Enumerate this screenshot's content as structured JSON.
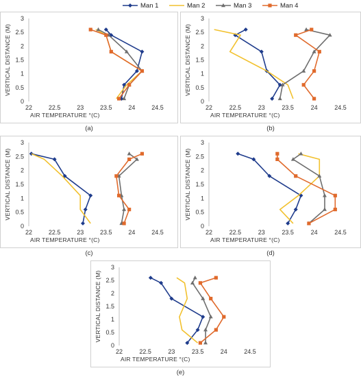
{
  "colors": {
    "Man 1": "#1f3c8c",
    "Man 2": "#f2c12e",
    "Man 3": "#6e6e6e",
    "Man 4": "#e06a2c"
  },
  "legend": [
    {
      "name": "Man 1",
      "marker": "diamond"
    },
    {
      "name": "Man 2",
      "marker": "none"
    },
    {
      "name": "Man 3",
      "marker": "triangle"
    },
    {
      "name": "Man 4",
      "marker": "square"
    }
  ],
  "chart_data": [
    {
      "type": "line",
      "panel_label": "(a)",
      "xlabel": "AIR TEMPERATURE °(C)",
      "ylabel": "VERTICAL DISTANCE (M)",
      "xlim": [
        22,
        24.5
      ],
      "ylim": [
        0,
        3
      ],
      "xticks": [
        "22",
        "22.5",
        "23",
        "23.5",
        "24",
        "24.5"
      ],
      "yticks": [
        "0",
        "0.5",
        "1",
        "1.5",
        "2",
        "2.5",
        "3"
      ],
      "series": [
        {
          "name": "Man 1",
          "x": [
            23.8,
            23.85,
            24.1,
            24.2,
            23.6,
            23.5
          ],
          "y": [
            0.1,
            0.6,
            1.1,
            1.8,
            2.4,
            2.6
          ]
        },
        {
          "name": "Man 2",
          "x": [
            23.7,
            23.9,
            24.2,
            23.6,
            23.5,
            23.3
          ],
          "y": [
            0.1,
            0.6,
            1.1,
            1.8,
            2.4,
            2.6
          ]
        },
        {
          "name": "Man 3",
          "x": [
            23.85,
            23.95,
            24.2,
            23.9,
            23.55,
            23.35
          ],
          "y": [
            0.1,
            0.6,
            1.1,
            1.8,
            2.4,
            2.6
          ]
        },
        {
          "name": "Man 4",
          "x": [
            23.75,
            23.95,
            24.2,
            23.6,
            23.5,
            23.2
          ],
          "y": [
            0.1,
            0.6,
            1.1,
            1.8,
            2.4,
            2.6
          ]
        }
      ]
    },
    {
      "type": "line",
      "panel_label": "(b)",
      "xlabel": "AIR TEMPERATURE °(C)",
      "ylabel": "VERTICAL DISTANCE (M)",
      "xlim": [
        22,
        24.5
      ],
      "ylim": [
        0,
        3
      ],
      "xticks": [
        "22",
        "22.5",
        "23",
        "23.5",
        "24",
        "24.5"
      ],
      "yticks": [
        "0",
        "0.5",
        "1",
        "1.5",
        "2",
        "2.5",
        "3"
      ],
      "series": [
        {
          "name": "Man 1",
          "x": [
            23.2,
            23.35,
            23.1,
            23.0,
            22.5,
            22.7
          ],
          "y": [
            0.1,
            0.6,
            1.1,
            1.8,
            2.4,
            2.6
          ]
        },
        {
          "name": "Man 2",
          "x": [
            23.6,
            23.5,
            23.1,
            22.4,
            22.6,
            22.1
          ],
          "y": [
            0.1,
            0.6,
            1.1,
            1.8,
            2.4,
            2.6
          ]
        },
        {
          "name": "Man 3",
          "x": [
            23.35,
            23.4,
            23.8,
            24.0,
            24.3,
            23.85
          ],
          "y": [
            0.1,
            0.6,
            1.1,
            1.8,
            2.4,
            2.6
          ]
        },
        {
          "name": "Man 4",
          "x": [
            24.0,
            23.8,
            24.0,
            24.1,
            23.65,
            23.95
          ],
          "y": [
            0.1,
            0.6,
            1.1,
            1.8,
            2.4,
            2.6
          ]
        }
      ]
    },
    {
      "type": "line",
      "panel_label": "(c)",
      "xlabel": "AIR TEMPERATURE °(C)",
      "ylabel": "VERTICAL DISTANCE (M)",
      "xlim": [
        22,
        24.5
      ],
      "ylim": [
        0,
        3
      ],
      "xticks": [
        "22",
        "22.5",
        "23",
        "23.5",
        "24",
        "24.5"
      ],
      "yticks": [
        "0",
        "0.5",
        "1",
        "1.5",
        "2",
        "2.5",
        "3"
      ],
      "series": [
        {
          "name": "Man 1",
          "x": [
            23.05,
            23.1,
            23.2,
            22.7,
            22.5,
            22.05
          ],
          "y": [
            0.1,
            0.6,
            1.1,
            1.8,
            2.4,
            2.6
          ]
        },
        {
          "name": "Man 2",
          "x": [
            23.2,
            23.0,
            23.0,
            22.65,
            22.3,
            22.05
          ],
          "y": [
            0.1,
            0.6,
            1.1,
            1.8,
            2.4,
            2.6
          ]
        },
        {
          "name": "Man 3",
          "x": [
            23.8,
            23.85,
            23.8,
            23.75,
            24.1,
            23.95
          ],
          "y": [
            0.1,
            0.6,
            1.1,
            1.8,
            2.4,
            2.6
          ]
        },
        {
          "name": "Man 4",
          "x": [
            23.85,
            23.95,
            23.75,
            23.7,
            23.95,
            24.2
          ],
          "y": [
            0.1,
            0.6,
            1.1,
            1.8,
            2.4,
            2.6
          ]
        }
      ]
    },
    {
      "type": "line",
      "panel_label": "(d)",
      "xlabel": "AIR TEMPERATURE °(C)",
      "ylabel": "VERTICAL DISTANCE (M)",
      "xlim": [
        22,
        24.5
      ],
      "ylim": [
        0,
        3
      ],
      "xticks": [
        "22",
        "22.5",
        "23",
        "23.5",
        "24",
        "24.5"
      ],
      "yticks": [
        "0",
        "0.5",
        "1",
        "1.5",
        "2",
        "2.5",
        "3"
      ],
      "series": [
        {
          "name": "Man 1",
          "x": [
            23.5,
            23.65,
            23.75,
            23.15,
            22.85,
            22.55
          ],
          "y": [
            0.1,
            0.6,
            1.1,
            1.8,
            2.4,
            2.6
          ]
        },
        {
          "name": "Man 2",
          "x": [
            23.6,
            23.35,
            23.7,
            24.1,
            24.1,
            23.7
          ],
          "y": [
            0.1,
            0.6,
            1.1,
            1.8,
            2.4,
            2.6
          ]
        },
        {
          "name": "Man 3",
          "x": [
            23.9,
            24.2,
            24.2,
            24.1,
            23.6,
            23.75
          ],
          "y": [
            0.1,
            0.6,
            1.1,
            1.8,
            2.4,
            2.6
          ]
        },
        {
          "name": "Man 4",
          "x": [
            23.9,
            24.4,
            24.4,
            23.65,
            23.3,
            23.3
          ],
          "y": [
            0.1,
            0.6,
            1.1,
            1.8,
            2.4,
            2.6
          ]
        }
      ]
    },
    {
      "type": "line",
      "panel_label": "(e)",
      "xlabel": "AIR TEMPERATURE °(C)",
      "ylabel": "VERTICAL DISTANCE (M)",
      "xlim": [
        22,
        24.5
      ],
      "ylim": [
        0,
        3
      ],
      "xticks": [
        "22",
        "22.5",
        "23",
        "23.5",
        "24",
        "24.5"
      ],
      "yticks": [
        "0",
        "0.5",
        "1",
        "1.5",
        "2",
        "2.5",
        "3"
      ],
      "series": [
        {
          "name": "Man 1",
          "x": [
            23.3,
            23.5,
            23.6,
            23.0,
            22.8,
            22.6
          ],
          "y": [
            0.1,
            0.6,
            1.1,
            1.8,
            2.4,
            2.6
          ]
        },
        {
          "name": "Man 2",
          "x": [
            23.5,
            23.2,
            23.15,
            23.3,
            23.25,
            23.1
          ],
          "y": [
            0.1,
            0.6,
            1.1,
            1.8,
            2.4,
            2.6
          ]
        },
        {
          "name": "Man 3",
          "x": [
            23.65,
            23.65,
            23.75,
            23.6,
            23.4,
            23.45
          ],
          "y": [
            0.1,
            0.6,
            1.1,
            1.8,
            2.4,
            2.6
          ]
        },
        {
          "name": "Man 4",
          "x": [
            23.55,
            23.85,
            24.0,
            23.75,
            23.55,
            23.85
          ],
          "y": [
            0.1,
            0.6,
            1.1,
            1.8,
            2.4,
            2.6
          ]
        }
      ]
    }
  ]
}
